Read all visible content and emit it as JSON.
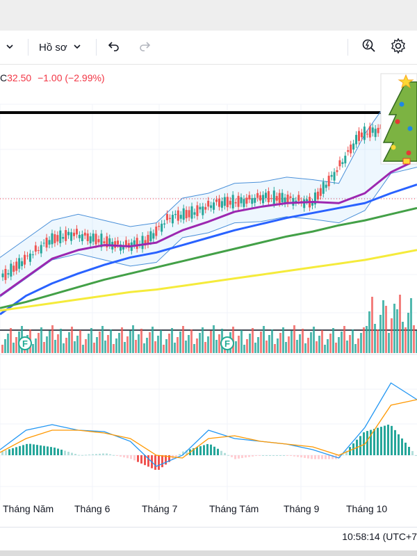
{
  "toolbar": {
    "profile_label": "Hồ sơ"
  },
  "legend": {
    "prefix": "C",
    "close": "32.50",
    "change": "−1.00",
    "change_pct": "(−2.99%)"
  },
  "colors": {
    "up": "#26a69a",
    "down": "#ef5350",
    "ma_short": "#9c27b0",
    "ma_mid": "#2962ff",
    "ma_long": "#43a047",
    "ma_longest": "#f5eb3b",
    "bollinger": "#4a90d9",
    "macd_line": "#2196f3",
    "signal_line": "#ff9800"
  },
  "chart_data": {
    "type": "line",
    "x_ticks": [
      "Tháng Năm",
      "Tháng 6",
      "Tháng 7",
      "Tháng Tám",
      "Tháng 9",
      "Tháng 10"
    ],
    "events": [
      "F",
      "F"
    ],
    "series": [
      {
        "values": [
          22.0,
          23.5,
          25.0,
          25.5,
          25.0,
          24.5,
          24.8,
          26.8,
          27.2,
          28.0,
          28.1,
          28.5,
          28.3,
          28.0,
          30.5,
          33.5,
          34.0
        ]
      },
      {
        "values": [
          20.5,
          22.0,
          23.5,
          24.2,
          24.6,
          24.5,
          24.8,
          25.8,
          26.5,
          27.3,
          27.7,
          28.0,
          28.1,
          28.0,
          28.8,
          30.5,
          31.5
        ]
      },
      {
        "values": [
          19.0,
          20.5,
          21.5,
          22.3,
          23.0,
          23.6,
          24.0,
          24.6,
          25.2,
          25.8,
          26.3,
          26.8,
          27.2,
          27.6,
          28.0,
          28.8,
          29.5
        ]
      },
      {
        "values": [
          19.5,
          20.0,
          20.6,
          21.2,
          21.8,
          22.3,
          22.8,
          23.3,
          23.8,
          24.3,
          24.8,
          25.3,
          25.7,
          26.2,
          26.6,
          27.1,
          27.6
        ]
      },
      {
        "values": [
          19.3,
          19.6,
          19.9,
          20.2,
          20.5,
          20.8,
          21.0,
          21.3,
          21.6,
          21.9,
          22.2,
          22.5,
          22.8,
          23.1,
          23.4,
          23.8,
          24.2
        ]
      }
    ],
    "macd": {
      "macd_values": [
        0.2,
        0.9,
        1.1,
        0.9,
        0.85,
        0.5,
        -0.4,
        0.0,
        0.9,
        0.6,
        0.5,
        0.4,
        0.2,
        -0.1,
        1.0,
        2.6,
        2.0
      ],
      "signal_values": [
        0.1,
        0.6,
        0.9,
        0.9,
        0.8,
        0.6,
        0.0,
        -0.1,
        0.6,
        0.7,
        0.5,
        0.4,
        0.3,
        0.0,
        0.4,
        1.8,
        2.0
      ]
    }
  },
  "clock": "10:58:14 (UTC+7"
}
